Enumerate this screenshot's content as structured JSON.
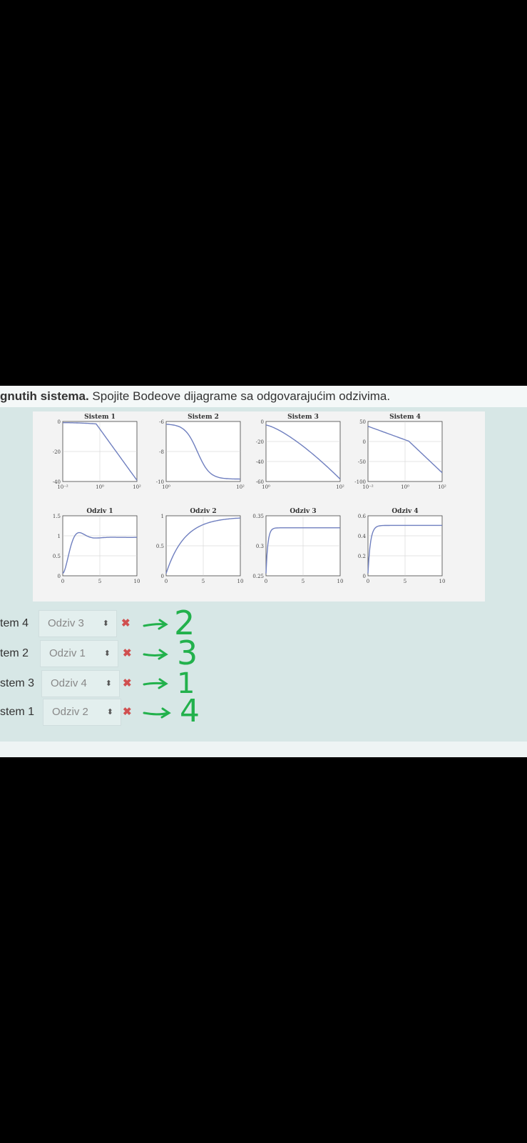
{
  "question": {
    "bold_prefix": "gnutih sistema.",
    "text": " Spojite Bodeove dijagrame sa odgovarajućim odzivima."
  },
  "colors": {
    "curve": "#6f7fbf",
    "grid": "#cccccc",
    "wrong_mark": "#d05050",
    "annotation": "#22b14c"
  },
  "bode_plots": [
    {
      "title": "Sistem 1",
      "y_ticks": [
        "0",
        "-20",
        "-40"
      ],
      "x_ticks": [
        "10⁻²",
        "10⁰",
        "10²"
      ]
    },
    {
      "title": "Sistem 2",
      "y_ticks": [
        "-6",
        "-8",
        "-10"
      ],
      "x_ticks": [
        "10⁰",
        "10²"
      ]
    },
    {
      "title": "Sistem 3",
      "y_ticks": [
        "0",
        "-20",
        "-40",
        "-60"
      ],
      "x_ticks": [
        "10⁰",
        "10²"
      ]
    },
    {
      "title": "Sistem 4",
      "y_ticks": [
        "50",
        "0",
        "-50",
        "-100"
      ],
      "x_ticks": [
        "10⁻²",
        "10⁰",
        "10²"
      ]
    }
  ],
  "step_plots": [
    {
      "title": "Odziv 1",
      "y_ticks": [
        "1.5",
        "1",
        "0.5",
        "0"
      ],
      "x_ticks": [
        "0",
        "5",
        "10"
      ]
    },
    {
      "title": "Odziv 2",
      "y_ticks": [
        "1",
        "0.5",
        "0"
      ],
      "x_ticks": [
        "0",
        "5",
        "10"
      ]
    },
    {
      "title": "Odziv 3",
      "y_ticks": [
        "0.35",
        "0.3",
        "0.25"
      ],
      "x_ticks": [
        "0",
        "5",
        "10"
      ]
    },
    {
      "title": "Odziv 4",
      "y_ticks": [
        "0.6",
        "0.4",
        "0.2",
        "0"
      ],
      "x_ticks": [
        "0",
        "5",
        "10"
      ]
    }
  ],
  "answers": [
    {
      "system": "tem 4",
      "selected": "Odziv 3",
      "arrows": "⬍",
      "mark": "✖",
      "note": "2"
    },
    {
      "system": "tem 2",
      "selected": "Odziv 1",
      "arrows": "⬍",
      "mark": "✖",
      "note": "3"
    },
    {
      "system": "stem 3",
      "selected": "Odziv 4",
      "arrows": "⬍",
      "mark": "✖",
      "note": "1"
    },
    {
      "system": "stem 1",
      "selected": "Odziv 2",
      "arrows": "⬍",
      "mark": "✖",
      "note": "4"
    }
  ]
}
